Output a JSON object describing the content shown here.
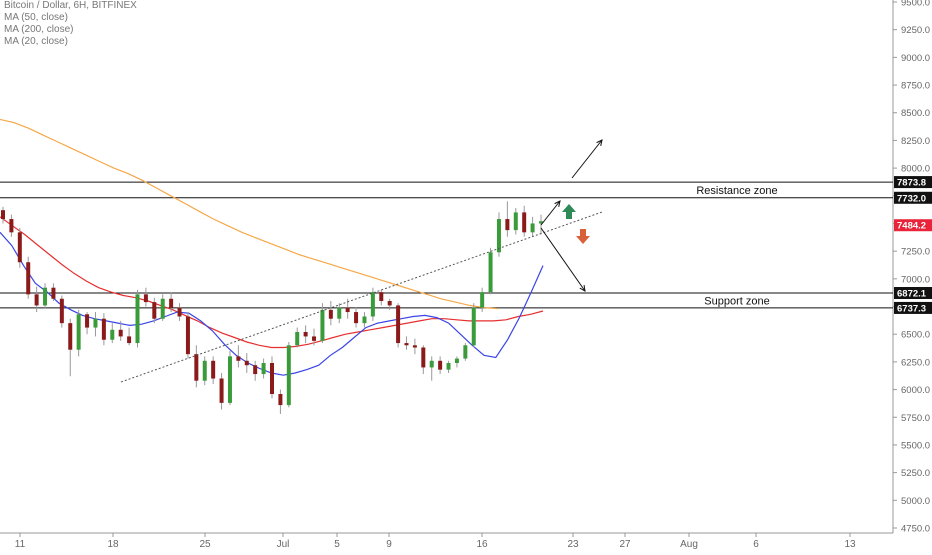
{
  "legend": {
    "symbol": "Bitcoin / Dollar, 6H, BITFINEX",
    "ma50": "MA (50, close)",
    "ma200": "MA (200, close)",
    "ma20": "MA (20, close)"
  },
  "colors": {
    "up": "#3a9b3a",
    "down": "#8b1a1a",
    "ma20": "#3a45e6",
    "ma50": "#e62f2f",
    "ma200": "#f5a848",
    "arrow_up": "#2e8b57",
    "arrow_down": "#d9613a",
    "axis_text": "#666666",
    "price_tag": "#e8233a"
  },
  "chart_data": {
    "type": "candlestick",
    "title": "Bitcoin / Dollar, 6H, BITFINEX",
    "y_ticks": [
      4750,
      5000,
      5250,
      5500,
      5750,
      6000,
      6250,
      6500,
      6750,
      7000,
      7250,
      7500,
      7750,
      8000,
      8250,
      8500,
      8750,
      9000,
      9250,
      9500
    ],
    "y_tick_labels": [
      "4750.0",
      "5000.0",
      "5250.0",
      "5500.0",
      "5750.0",
      "6000.0",
      "6250.0",
      "6500.0",
      "6750.0",
      "7000.0",
      "7250.0",
      "7500.0",
      "7750.0",
      "8000.0",
      "8250.0",
      "8500.0",
      "8750.0",
      "9000.0",
      "9250.0",
      "9500.0"
    ],
    "ylim": [
      4620,
      9530
    ],
    "x_tick_labels": [
      "11",
      "18",
      "25",
      "Jul",
      "5",
      "9",
      "16",
      "23",
      "27",
      "Aug",
      "6",
      "13"
    ],
    "levels": [
      {
        "label": "7873.8",
        "value": 7873.8
      },
      {
        "label": "7732.0",
        "value": 7732.0
      },
      {
        "label": "6872.1",
        "value": 6872.1
      },
      {
        "label": "6737.3",
        "value": 6737.3
      }
    ],
    "last_price": {
      "label": "7484.2",
      "value": 7484.2
    },
    "zones": [
      {
        "label": "Resistance zone",
        "top": 7873.8,
        "bottom": 7732.0
      },
      {
        "label": "Support zone",
        "top": 6872.1,
        "bottom": 6737.3
      }
    ],
    "series": [
      {
        "name": "MA (20, close)",
        "values": [
          7420,
          7300,
          7120,
          6960,
          6880,
          6780,
          6720,
          6670,
          6640,
          6620,
          6600,
          6580,
          6590,
          6620,
          6660,
          6700,
          6690,
          6620,
          6530,
          6410,
          6310,
          6240,
          6190,
          6150,
          6130,
          6150,
          6180,
          6220,
          6310,
          6380,
          6470,
          6560,
          6600,
          6620,
          6640,
          6660,
          6670,
          6650,
          6600,
          6500,
          6400,
          6310,
          6290,
          6450,
          6650,
          6880,
          7120
        ]
      },
      {
        "name": "MA (50, close)",
        "values": [
          7560,
          7480,
          7400,
          7310,
          7220,
          7130,
          7050,
          6980,
          6920,
          6880,
          6850,
          6830,
          6800,
          6760,
          6720,
          6670,
          6620,
          6560,
          6510,
          6470,
          6430,
          6400,
          6380,
          6380,
          6390,
          6410,
          6440,
          6470,
          6500,
          6520,
          6540,
          6560,
          6580,
          6600,
          6620,
          6640,
          6640,
          6630,
          6620,
          6620,
          6620,
          6630,
          6660,
          6680,
          6710
        ]
      },
      {
        "name": "MA (200, close)",
        "values": [
          8440,
          8410,
          8360,
          8300,
          8240,
          8180,
          8120,
          8060,
          8000,
          7950,
          7890,
          7820,
          7750,
          7680,
          7610,
          7540,
          7480,
          7420,
          7370,
          7320,
          7270,
          7220,
          7180,
          7140,
          7100,
          7060,
          7020,
          6980,
          6940,
          6900,
          6860,
          6820,
          6790,
          6760,
          6740,
          6730
        ]
      }
    ],
    "candles": [
      [
        7620,
        7650,
        7500,
        7540
      ],
      [
        7540,
        7580,
        7380,
        7420
      ],
      [
        7420,
        7460,
        7100,
        7150
      ],
      [
        7150,
        7200,
        6820,
        6860
      ],
      [
        6860,
        6930,
        6700,
        6760
      ],
      [
        6760,
        6960,
        6730,
        6920
      ],
      [
        6920,
        6960,
        6800,
        6820
      ],
      [
        6820,
        6850,
        6560,
        6600
      ],
      [
        6600,
        6640,
        6120,
        6360
      ],
      [
        6360,
        6720,
        6300,
        6680
      ],
      [
        6680,
        6700,
        6500,
        6560
      ],
      [
        6560,
        6700,
        6480,
        6640
      ],
      [
        6640,
        6690,
        6400,
        6450
      ],
      [
        6450,
        6600,
        6420,
        6540
      ],
      [
        6540,
        6620,
        6440,
        6480
      ],
      [
        6480,
        6560,
        6400,
        6420
      ],
      [
        6420,
        6900,
        6380,
        6860
      ],
      [
        6860,
        6920,
        6750,
        6790
      ],
      [
        6790,
        6830,
        6600,
        6640
      ],
      [
        6640,
        6860,
        6620,
        6820
      ],
      [
        6820,
        6880,
        6700,
        6740
      ],
      [
        6740,
        6780,
        6620,
        6660
      ],
      [
        6660,
        6700,
        6280,
        6320
      ],
      [
        6320,
        6400,
        6020,
        6080
      ],
      [
        6080,
        6300,
        6040,
        6260
      ],
      [
        6260,
        6300,
        6050,
        6100
      ],
      [
        6100,
        6150,
        5820,
        5880
      ],
      [
        5880,
        6350,
        5860,
        6300
      ],
      [
        6300,
        6400,
        6200,
        6260
      ],
      [
        6260,
        6330,
        6150,
        6220
      ],
      [
        6220,
        6260,
        6080,
        6140
      ],
      [
        6140,
        6280,
        6100,
        6240
      ],
      [
        6240,
        6300,
        5920,
        5960
      ],
      [
        5960,
        6000,
        5780,
        5860
      ],
      [
        5860,
        6430,
        5840,
        6400
      ],
      [
        6400,
        6560,
        6380,
        6520
      ],
      [
        6520,
        6580,
        6420,
        6480
      ],
      [
        6480,
        6550,
        6400,
        6440
      ],
      [
        6440,
        6780,
        6420,
        6720
      ],
      [
        6720,
        6800,
        6580,
        6640
      ],
      [
        6640,
        6780,
        6600,
        6740
      ],
      [
        6740,
        6820,
        6640,
        6700
      ],
      [
        6700,
        6740,
        6560,
        6600
      ],
      [
        6600,
        6700,
        6560,
        6660
      ],
      [
        6660,
        6920,
        6620,
        6880
      ],
      [
        6880,
        6900,
        6760,
        6800
      ],
      [
        6800,
        6820,
        6720,
        6760
      ],
      [
        6760,
        6780,
        6380,
        6420
      ],
      [
        6420,
        6480,
        6360,
        6400
      ],
      [
        6400,
        6460,
        6320,
        6380
      ],
      [
        6380,
        6400,
        6140,
        6200
      ],
      [
        6200,
        6300,
        6080,
        6260
      ],
      [
        6260,
        6300,
        6140,
        6180
      ],
      [
        6180,
        6260,
        6150,
        6240
      ],
      [
        6240,
        6300,
        6200,
        6280
      ],
      [
        6280,
        6420,
        6260,
        6400
      ],
      [
        6400,
        6780,
        6380,
        6740
      ],
      [
        6740,
        6920,
        6700,
        6880
      ],
      [
        6880,
        7280,
        6860,
        7240
      ],
      [
        7240,
        7600,
        7200,
        7540
      ],
      [
        7540,
        7700,
        7380,
        7440
      ],
      [
        7440,
        7640,
        7400,
        7600
      ],
      [
        7600,
        7660,
        7380,
        7420
      ],
      [
        7420,
        7560,
        7380,
        7500
      ],
      [
        7500,
        7580,
        7400,
        7520
      ]
    ],
    "annotations": {
      "trendline": {
        "from": [
          6120
        ],
        "to": [
          7600
        ]
      },
      "projection_up_target": 8400,
      "projection_down_target": 6890
    }
  }
}
